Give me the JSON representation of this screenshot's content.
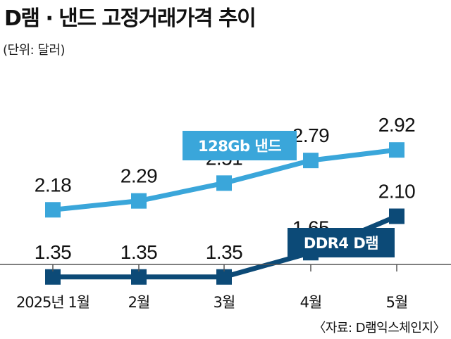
{
  "chart_data": {
    "type": "line",
    "title": "D램 · 낸드 고정거래가격 추이",
    "subtitle": "(단위: 달러)",
    "source": "〈자료: D램익스체인지〉",
    "categories": [
      "2025년 1월",
      "2월",
      "3월",
      "4월",
      "5월"
    ],
    "series": [
      {
        "name": "128Gb 낸드",
        "values": [
          2.18,
          2.29,
          2.51,
          2.79,
          2.92
        ],
        "color": "#3aa6da"
      },
      {
        "name": "DDR4 D램",
        "values": [
          1.35,
          1.35,
          1.35,
          1.65,
          2.1
        ],
        "color": "#0c4a77"
      }
    ],
    "ylim": [
      1.0,
      3.0
    ],
    "grid": false,
    "value_format": "2-decimal"
  }
}
